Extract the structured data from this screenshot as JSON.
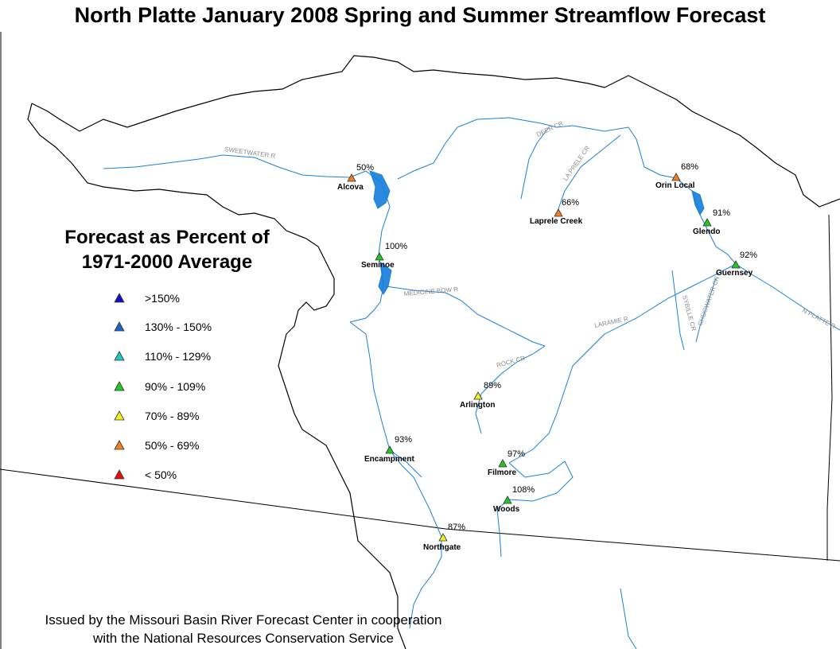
{
  "title": "North Platte January 2008 Spring and Summer Streamflow Forecast",
  "legend": {
    "title_line1": "Forecast as Percent of",
    "title_line2": "1971-2000 Average",
    "items": [
      {
        "label": ">150%",
        "color": "#1010c8"
      },
      {
        "label": "130% - 150%",
        "color": "#1e64c8"
      },
      {
        "label": "110% - 129%",
        "color": "#20c8c8"
      },
      {
        "label": "90% - 109%",
        "color": "#22c822"
      },
      {
        "label": "70% - 89%",
        "color": "#f0f020"
      },
      {
        "label": "50% - 69%",
        "color": "#f08020"
      },
      {
        "label": "< 50%",
        "color": "#e01010"
      }
    ]
  },
  "stations": [
    {
      "name": "Alcova",
      "percent": "50%",
      "color": "#f08020"
    },
    {
      "name": "Seminoe",
      "percent": "100%",
      "color": "#22c822"
    },
    {
      "name": "Laprele Creek",
      "percent": "66%",
      "color": "#f08020"
    },
    {
      "name": "Orin Local",
      "percent": "68%",
      "color": "#f08020"
    },
    {
      "name": "Glendo",
      "percent": "91%",
      "color": "#22c822"
    },
    {
      "name": "Guernsey",
      "percent": "92%",
      "color": "#22c822"
    },
    {
      "name": "Arlington",
      "percent": "89%",
      "color": "#f0f020"
    },
    {
      "name": "Encampment",
      "percent": "93%",
      "color": "#22c822"
    },
    {
      "name": "Filmore",
      "percent": "97%",
      "color": "#22c822"
    },
    {
      "name": "Woods",
      "percent": "108%",
      "color": "#22c822"
    },
    {
      "name": "Northgate",
      "percent": "87%",
      "color": "#f0f020"
    }
  ],
  "rivers": {
    "sweetwater": "SWEETWATER R",
    "deer": "DEER CR",
    "laprele": "LA PRELE CR",
    "medicine_bow": "MEDICINE BOW R",
    "rock": "ROCK CR",
    "laramie": "LARAMIE R",
    "sybille": "SYBILLE CR",
    "chugwater": "CHUGWATER CR",
    "n_platte": "N PLATTE R"
  },
  "footer": {
    "line1": "Issued by the Missouri Basin River Forecast Center in cooperation",
    "line2": "with the National Resources Conservation Service"
  },
  "colors": {
    "river": "#1a7fd6",
    "reservoir": "#2a8ae0",
    "boundary": "#000000"
  }
}
